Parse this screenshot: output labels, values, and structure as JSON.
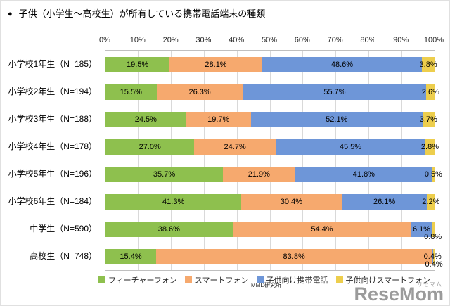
{
  "title": {
    "bullet": "●",
    "text": "子供（小学生～高校生）が所有している携帯電話端末の種類"
  },
  "source": "MMD研究所",
  "watermark": {
    "logo": "ReseMom",
    "kana": "リセマム"
  },
  "chart_data": {
    "type": "bar",
    "orientation": "horizontal",
    "stacked": true,
    "title": "子供（小学生～高校生）が所有している携帯電話端末の種類",
    "categories": [
      "小学校1年生（N=185）",
      "小学校2年生（N=194）",
      "小学校3年生（N=188）",
      "小学校4年生（N=178）",
      "小学校5年生（N=196）",
      "小学校6年生（N=184）",
      "中学生（N=590）",
      "高校生（N=748）"
    ],
    "series": [
      {
        "name": "フィーチャーフォン",
        "color": "#8ec04e",
        "values": [
          19.5,
          15.5,
          24.5,
          27.0,
          35.7,
          41.3,
          38.6,
          15.4
        ]
      },
      {
        "name": "スマートフォン",
        "color": "#f6a96e",
        "values": [
          28.1,
          26.3,
          19.7,
          24.7,
          21.9,
          30.4,
          54.4,
          83.8
        ]
      },
      {
        "name": "子供向け携帯電話",
        "color": "#6e96d8",
        "values": [
          48.6,
          55.7,
          52.1,
          45.5,
          41.8,
          26.1,
          6.1,
          0.4
        ]
      },
      {
        "name": "子供向けスマートフォン",
        "color": "#edce4d",
        "values": [
          3.8,
          2.6,
          3.7,
          2.8,
          0.5,
          2.2,
          0.8,
          0.4
        ]
      }
    ],
    "x_axis": {
      "min": 0,
      "max": 100,
      "ticks": [
        "0%",
        "10%",
        "20%",
        "30%",
        "40%",
        "50%",
        "60%",
        "70%",
        "80%",
        "90%",
        "100%"
      ]
    },
    "value_suffix": "%",
    "grid": true,
    "legend_position": "bottom"
  }
}
